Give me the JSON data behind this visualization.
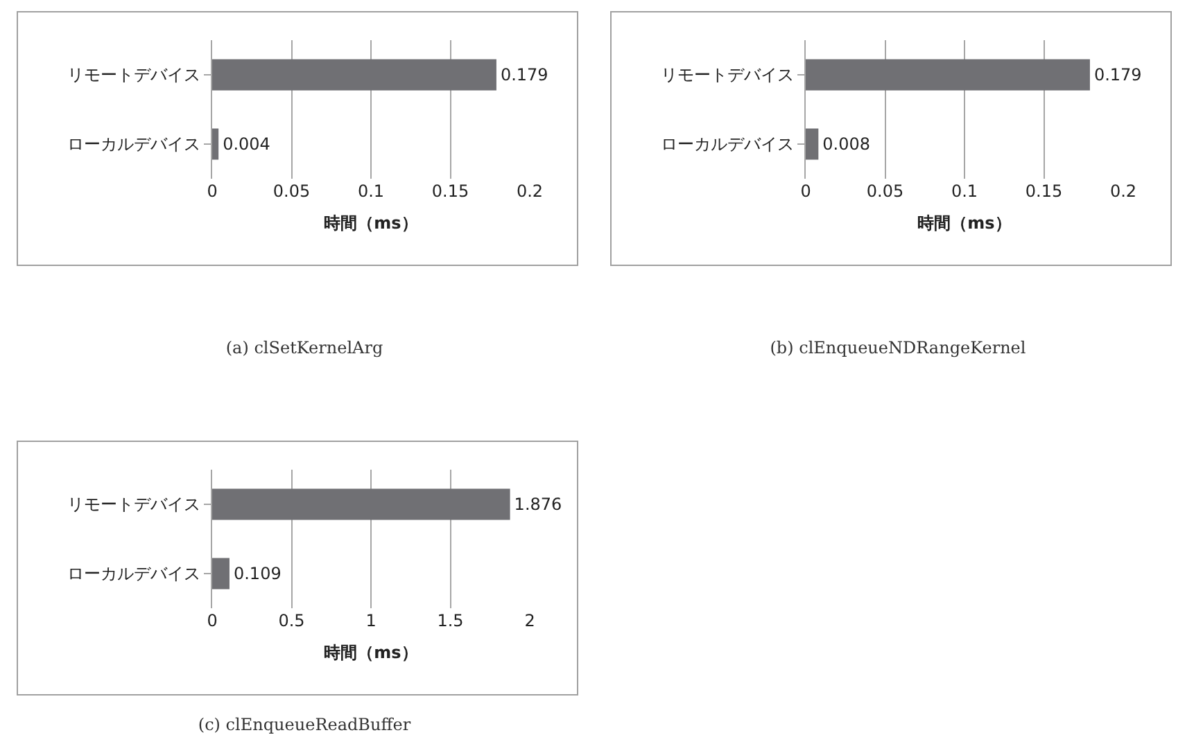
{
  "chart_data": [
    {
      "type": "bar",
      "orientation": "horizontal",
      "categories": [
        "リモートデバイス",
        "ローカルデバイス"
      ],
      "values": [
        0.179,
        0.004
      ],
      "color": "#707074",
      "xlim": [
        0,
        0.2
      ],
      "xticks": [
        0,
        0.05,
        0.1,
        0.15,
        0.2
      ],
      "xlabel": "時間（ms）",
      "grid": "x",
      "data_labels": true,
      "annotations": [
        "(a) clSetKernelArg"
      ]
    },
    {
      "type": "bar",
      "orientation": "horizontal",
      "categories": [
        "リモートデバイス",
        "ローカルデバイス"
      ],
      "values": [
        0.179,
        0.008
      ],
      "color": "#707074",
      "xlim": [
        0,
        0.2
      ],
      "xticks": [
        0,
        0.05,
        0.1,
        0.15,
        0.2
      ],
      "xlabel": "時間（ms）",
      "grid": "x",
      "data_labels": true,
      "annotations": [
        "(b) clEnqueueNDRangeKernel"
      ]
    },
    {
      "type": "bar",
      "orientation": "horizontal",
      "categories": [
        "リモートデバイス",
        "ローカルデバイス"
      ],
      "values": [
        1.876,
        0.109
      ],
      "color": "#707074",
      "xlim": [
        0,
        2
      ],
      "xticks": [
        0,
        0.5,
        1,
        1.5,
        2
      ],
      "xlabel": "時間（ms）",
      "grid": "x",
      "data_labels": true,
      "annotations": [
        "(c) clEnqueueReadBuffer"
      ]
    }
  ]
}
